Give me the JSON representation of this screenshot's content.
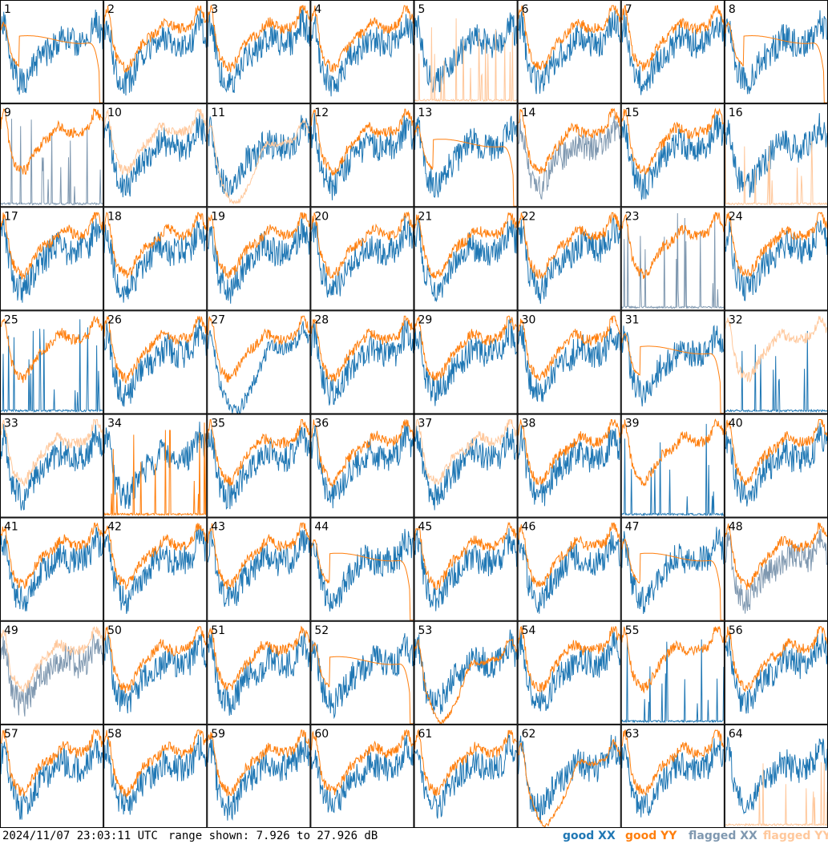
{
  "chart_data": {
    "type": "line",
    "panels": [
      {
        "label": "1",
        "xx": "good",
        "yy": "good",
        "yy_shape": "drop"
      },
      {
        "label": "2",
        "xx": "good",
        "yy": "good"
      },
      {
        "label": "3",
        "xx": "good",
        "yy": "good"
      },
      {
        "label": "4",
        "xx": "good",
        "yy": "good"
      },
      {
        "label": "5",
        "xx": "good",
        "yy": "flagged",
        "yy_shape": "spikes"
      },
      {
        "label": "6",
        "xx": "good",
        "yy": "good"
      },
      {
        "label": "7",
        "xx": "good",
        "yy": "good"
      },
      {
        "label": "8",
        "xx": "good",
        "yy": "good",
        "yy_shape": "drop"
      },
      {
        "label": "9",
        "xx": "flagged",
        "yy": "good",
        "xx_shape": "spikes"
      },
      {
        "label": "10",
        "xx": "good",
        "yy": "flagged"
      },
      {
        "label": "11",
        "xx": "good",
        "yy": "flagged",
        "yy_shape": "dip"
      },
      {
        "label": "12",
        "xx": "good",
        "yy": "good"
      },
      {
        "label": "13",
        "xx": "good",
        "yy": "good",
        "yy_shape": "drop"
      },
      {
        "label": "14",
        "xx": "flagged",
        "yy": "good"
      },
      {
        "label": "15",
        "xx": "good",
        "yy": "good"
      },
      {
        "label": "16",
        "xx": "good",
        "yy": "flagged",
        "yy_shape": "spikes"
      },
      {
        "label": "17",
        "xx": "good",
        "yy": "good"
      },
      {
        "label": "18",
        "xx": "good",
        "yy": "good"
      },
      {
        "label": "19",
        "xx": "good",
        "yy": "good"
      },
      {
        "label": "20",
        "xx": "good",
        "yy": "good"
      },
      {
        "label": "21",
        "xx": "good",
        "yy": "good"
      },
      {
        "label": "22",
        "xx": "good",
        "yy": "good"
      },
      {
        "label": "23",
        "xx": "flagged",
        "yy": "good",
        "xx_shape": "spikes"
      },
      {
        "label": "24",
        "xx": "good",
        "yy": "good"
      },
      {
        "label": "25",
        "xx": "good",
        "yy": "good",
        "xx_shape": "spikes"
      },
      {
        "label": "26",
        "xx": "good",
        "yy": "good"
      },
      {
        "label": "27",
        "xx": "good",
        "yy": "good",
        "xx_shape": "dip"
      },
      {
        "label": "28",
        "xx": "good",
        "yy": "good"
      },
      {
        "label": "29",
        "xx": "good",
        "yy": "good"
      },
      {
        "label": "30",
        "xx": "good",
        "yy": "good"
      },
      {
        "label": "31",
        "xx": "good",
        "yy": "good",
        "yy_shape": "drop"
      },
      {
        "label": "32",
        "xx": "good",
        "yy": "flagged",
        "xx_shape": "spikes"
      },
      {
        "label": "33",
        "xx": "good",
        "yy": "flagged"
      },
      {
        "label": "34",
        "xx": "good",
        "yy": "good",
        "yy_shape": "spikes"
      },
      {
        "label": "35",
        "xx": "good",
        "yy": "good"
      },
      {
        "label": "36",
        "xx": "good",
        "yy": "good"
      },
      {
        "label": "37",
        "xx": "good",
        "yy": "flagged"
      },
      {
        "label": "38",
        "xx": "good",
        "yy": "good"
      },
      {
        "label": "39",
        "xx": "good",
        "yy": "good",
        "xx_shape": "spikes"
      },
      {
        "label": "40",
        "xx": "good",
        "yy": "good"
      },
      {
        "label": "41",
        "xx": "good",
        "yy": "good"
      },
      {
        "label": "42",
        "xx": "good",
        "yy": "good"
      },
      {
        "label": "43",
        "xx": "good",
        "yy": "good"
      },
      {
        "label": "44",
        "xx": "good",
        "yy": "good",
        "yy_shape": "drop"
      },
      {
        "label": "45",
        "xx": "good",
        "yy": "good"
      },
      {
        "label": "46",
        "xx": "good",
        "yy": "good"
      },
      {
        "label": "47",
        "xx": "good",
        "yy": "good",
        "yy_shape": "drop"
      },
      {
        "label": "48",
        "xx": "flagged",
        "yy": "good"
      },
      {
        "label": "49",
        "xx": "flagged",
        "yy": "flagged"
      },
      {
        "label": "50",
        "xx": "good",
        "yy": "good"
      },
      {
        "label": "51",
        "xx": "good",
        "yy": "good"
      },
      {
        "label": "52",
        "xx": "good",
        "yy": "good",
        "yy_shape": "drop"
      },
      {
        "label": "53",
        "xx": "good",
        "yy": "good",
        "yy_shape": "dip"
      },
      {
        "label": "54",
        "xx": "good",
        "yy": "good"
      },
      {
        "label": "55",
        "xx": "good",
        "yy": "good",
        "xx_shape": "spikes"
      },
      {
        "label": "56",
        "xx": "good",
        "yy": "good"
      },
      {
        "label": "57",
        "xx": "good",
        "yy": "good"
      },
      {
        "label": "58",
        "xx": "good",
        "yy": "good"
      },
      {
        "label": "59",
        "xx": "good",
        "yy": "good"
      },
      {
        "label": "60",
        "xx": "good",
        "yy": "good"
      },
      {
        "label": "61",
        "xx": "good",
        "yy": "good"
      },
      {
        "label": "62",
        "xx": "good",
        "yy": "good",
        "yy_shape": "dip"
      },
      {
        "label": "63",
        "xx": "good",
        "yy": "good"
      },
      {
        "label": "64",
        "xx": "good",
        "yy": "flagged",
        "yy_shape": "spikes"
      }
    ],
    "range_db": [
      7.926,
      27.926
    ],
    "legend": [
      {
        "label": "good XX",
        "color": "#1f77b4"
      },
      {
        "label": "good YY",
        "color": "#ff7f0e"
      },
      {
        "label": "flagged XX",
        "color": "#7f98b0"
      },
      {
        "label": "flagged YY",
        "color": "#ffc89c"
      }
    ]
  },
  "footer": {
    "timestamp": "2024/11/07 23:03:11 UTC",
    "range_text": "range shown: 7.926 to 27.926 dB"
  }
}
